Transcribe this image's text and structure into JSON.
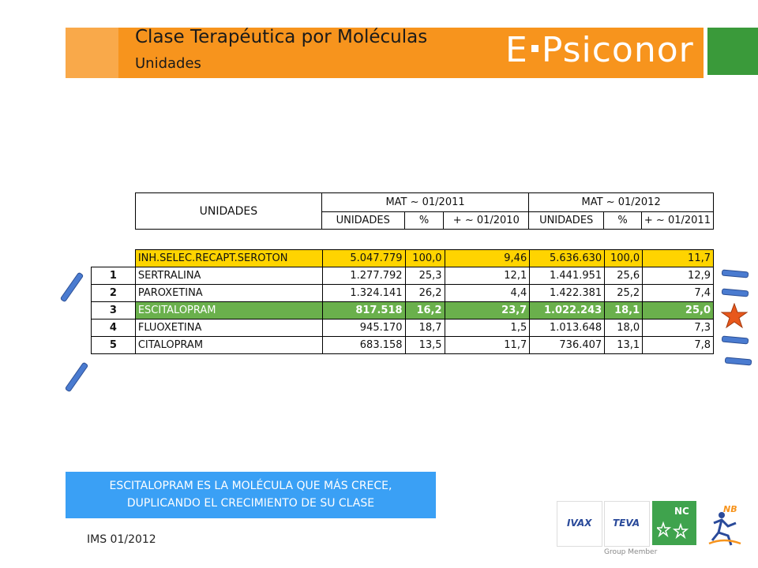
{
  "header": {
    "title": "Clase Terapéutica por Moléculas",
    "subtitle": "Unidades",
    "logo": "E-Psiconor"
  },
  "table": {
    "header_main": "UNIDADES",
    "period1": "MAT ~ 01/2011",
    "period2": "MAT ~ 01/2012",
    "sub": [
      "UNIDADES",
      "%",
      "+ ~ 01/2010",
      "UNIDADES",
      "%",
      "+ ~ 01/2011"
    ],
    "total": {
      "name": "INH.SELEC.RECAPT.SEROTON",
      "u1": "5.047.779",
      "p1": "100,0",
      "g1": "9,46",
      "u2": "5.636.630",
      "p2": "100,0",
      "g2": "11,7"
    },
    "rows": [
      {
        "rank": "1",
        "name": "SERTRALINA",
        "u1": "1.277.792",
        "p1": "25,3",
        "g1": "12,1",
        "u2": "1.441.951",
        "p2": "25,6",
        "g2": "12,9"
      },
      {
        "rank": "2",
        "name": "PAROXETINA",
        "u1": "1.324.141",
        "p1": "26,2",
        "g1": "4,4",
        "u2": "1.422.381",
        "p2": "25,2",
        "g2": "7,4"
      },
      {
        "rank": "3",
        "name": "ESCITALOPRAM",
        "u1": "817.518",
        "p1": "16,2",
        "g1": "23,7",
        "u2": "1.022.243",
        "p2": "18,1",
        "g2": "25,0"
      },
      {
        "rank": "4",
        "name": "FLUOXETINA",
        "u1": "945.170",
        "p1": "18,7",
        "g1": "1,5",
        "u2": "1.013.648",
        "p2": "18,0",
        "g2": "7,3"
      },
      {
        "rank": "5",
        "name": "CITALOPRAM",
        "u1": "683.158",
        "p1": "13,5",
        "g1": "11,7",
        "u2": "736.407",
        "p2": "13,1",
        "g2": "7,8"
      }
    ]
  },
  "callout": {
    "line1": "ESCITALOPRAM ES LA MOLÉCULA QUE MÁS CRECE,",
    "line2": "DUPLICANDO EL CRECIMIENTO DE SU CLASE"
  },
  "source": "IMS 01/2012",
  "partners": {
    "ivax": "IVAX",
    "teva": "TEVA",
    "nc": "NC",
    "nb": "NB",
    "group_member": "Group Member"
  },
  "colors": {
    "orange": "#f7941d",
    "yellow": "#ffd400",
    "green": "#6ab04c",
    "blue": "#3aa0f5"
  }
}
